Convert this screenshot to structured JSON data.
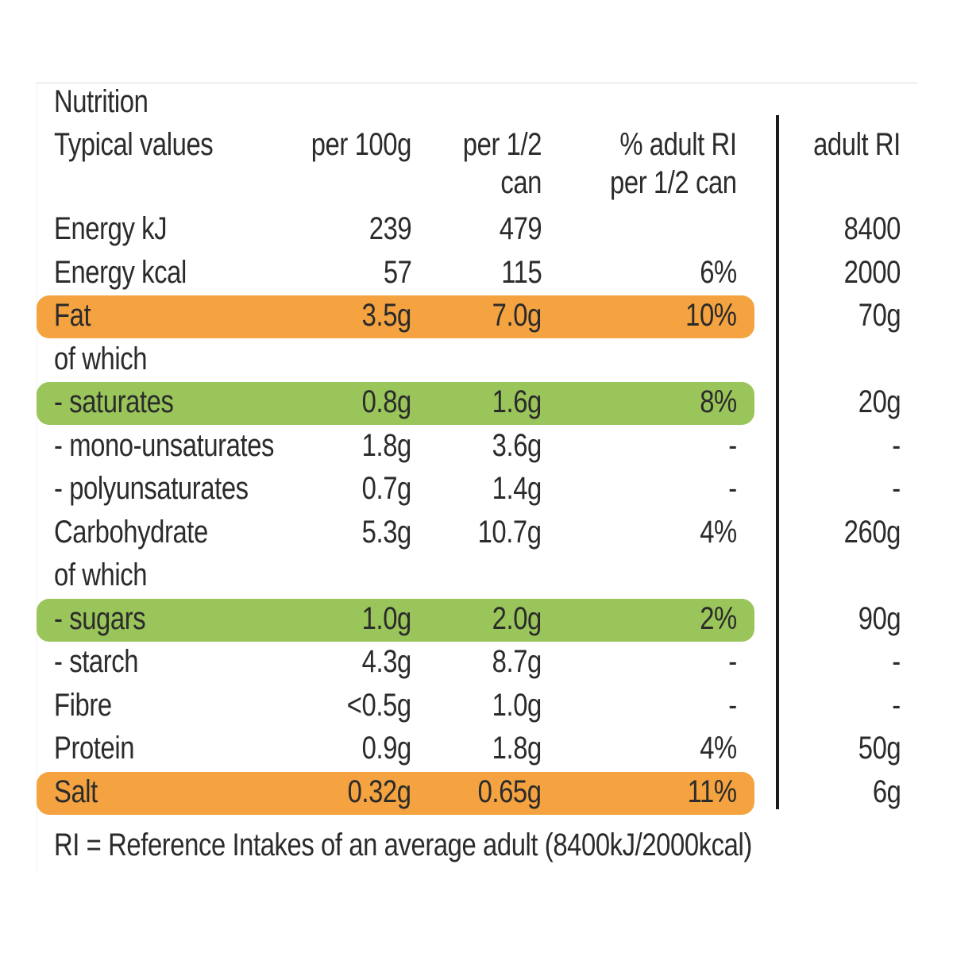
{
  "header": {
    "title": "Nutrition",
    "typical": "Typical values",
    "per100": "per 100g",
    "perhalf_1": "per 1/2",
    "perhalf_2": "can",
    "pctri_1": "% adult RI",
    "pctri_2": "per 1/2 can",
    "adultri": "adult RI"
  },
  "colors": {
    "orange": "#f4a340",
    "green": "#9ac55a",
    "divider": "#1a1a1a"
  },
  "rows": [
    {
      "label": "Energy kJ",
      "per100": "239",
      "perhalf": "479",
      "pct": "",
      "ri": "8400",
      "highlight": ""
    },
    {
      "label": "Energy kcal",
      "per100": "57",
      "perhalf": "115",
      "pct": "6%",
      "ri": "2000",
      "highlight": ""
    },
    {
      "label": "Fat",
      "per100": "3.5g",
      "perhalf": "7.0g",
      "pct": "10%",
      "ri": "70g",
      "highlight": "orange"
    },
    {
      "label": "of which",
      "per100": "",
      "perhalf": "",
      "pct": "",
      "ri": "",
      "highlight": ""
    },
    {
      "label": "- saturates",
      "per100": "0.8g",
      "perhalf": "1.6g",
      "pct": "8%",
      "ri": "20g",
      "highlight": "green"
    },
    {
      "label": "- mono-unsaturates",
      "per100": "1.8g",
      "perhalf": "3.6g",
      "pct": "-",
      "ri": "-",
      "highlight": ""
    },
    {
      "label": "- polyunsaturates",
      "per100": "0.7g",
      "perhalf": "1.4g",
      "pct": "-",
      "ri": "-",
      "highlight": ""
    },
    {
      "label": "Carbohydrate",
      "per100": "5.3g",
      "perhalf": "10.7g",
      "pct": "4%",
      "ri": "260g",
      "highlight": ""
    },
    {
      "label": "of which",
      "per100": "",
      "perhalf": "",
      "pct": "",
      "ri": "",
      "highlight": ""
    },
    {
      "label": "- sugars",
      "per100": "1.0g",
      "perhalf": "2.0g",
      "pct": "2%",
      "ri": "90g",
      "highlight": "green"
    },
    {
      "label": "- starch",
      "per100": "4.3g",
      "perhalf": "8.7g",
      "pct": "-",
      "ri": "-",
      "highlight": ""
    },
    {
      "label": "Fibre",
      "per100": "<0.5g",
      "perhalf": "1.0g",
      "pct": "-",
      "ri": "-",
      "highlight": ""
    },
    {
      "label": "Protein",
      "per100": "0.9g",
      "perhalf": "1.8g",
      "pct": "4%",
      "ri": "50g",
      "highlight": ""
    },
    {
      "label": "Salt",
      "per100": "0.32g",
      "perhalf": "0.65g",
      "pct": "11%",
      "ri": "6g",
      "highlight": "orange"
    }
  ],
  "footer": "RI = Reference Intakes of an average adult (8400kJ/2000kcal)"
}
